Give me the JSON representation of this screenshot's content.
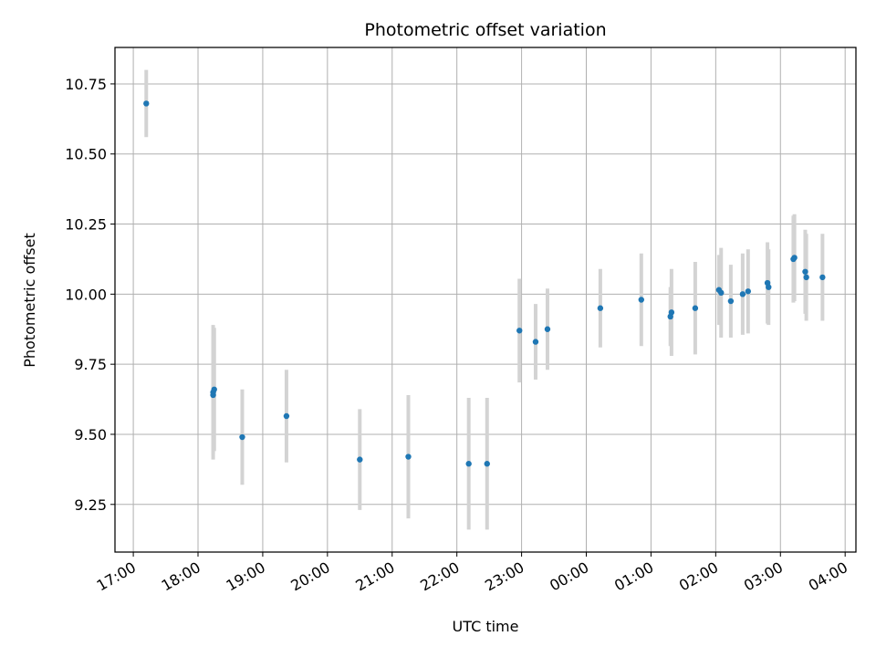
{
  "chart_data": {
    "type": "scatter",
    "title": "Photometric offset variation",
    "xlabel": "UTC time",
    "ylabel": "Photometric offset",
    "x_ticks": [
      "17:00",
      "18:00",
      "19:00",
      "20:00",
      "21:00",
      "22:00",
      "23:00",
      "00:00",
      "01:00",
      "02:00",
      "03:00",
      "04:00"
    ],
    "y_ticks": [
      "9.25",
      "9.50",
      "9.75",
      "10.00",
      "10.25",
      "10.50",
      "10.75"
    ],
    "xlim": [
      "16:43",
      "04:10"
    ],
    "ylim": [
      9.08,
      10.88
    ],
    "grid": true,
    "colors": {
      "point": "#1f77b4",
      "errorbar": "#d3d3d3",
      "grid": "#b0b0b0"
    },
    "points": [
      {
        "x": "17:12",
        "y": 10.68,
        "err": 0.12
      },
      {
        "x": "18:14",
        "y": 9.65,
        "err": 0.24
      },
      {
        "x": "18:14",
        "y": 9.64,
        "err": 0.21
      },
      {
        "x": "18:15",
        "y": 9.66,
        "err": 0.22
      },
      {
        "x": "18:41",
        "y": 9.49,
        "err": 0.17
      },
      {
        "x": "19:22",
        "y": 9.565,
        "err": 0.165
      },
      {
        "x": "20:30",
        "y": 9.41,
        "err": 0.18
      },
      {
        "x": "21:15",
        "y": 9.42,
        "err": 0.22
      },
      {
        "x": "22:11",
        "y": 9.395,
        "err": 0.235
      },
      {
        "x": "22:28",
        "y": 9.395,
        "err": 0.235
      },
      {
        "x": "22:58",
        "y": 9.87,
        "err": 0.185
      },
      {
        "x": "23:13",
        "y": 9.83,
        "err": 0.135
      },
      {
        "x": "23:24",
        "y": 9.875,
        "err": 0.145
      },
      {
        "x": "00:13",
        "y": 9.95,
        "err": 0.14
      },
      {
        "x": "00:51",
        "y": 9.98,
        "err": 0.165
      },
      {
        "x": "01:18",
        "y": 9.92,
        "err": 0.105
      },
      {
        "x": "01:19",
        "y": 9.935,
        "err": 0.155
      },
      {
        "x": "01:41",
        "y": 9.95,
        "err": 0.165
      },
      {
        "x": "02:03",
        "y": 10.015,
        "err": 0.125
      },
      {
        "x": "02:05",
        "y": 10.005,
        "err": 0.16
      },
      {
        "x": "02:14",
        "y": 9.975,
        "err": 0.13
      },
      {
        "x": "02:25",
        "y": 10.0,
        "err": 0.145
      },
      {
        "x": "02:30",
        "y": 10.01,
        "err": 0.15
      },
      {
        "x": "02:48",
        "y": 10.04,
        "err": 0.145
      },
      {
        "x": "02:49",
        "y": 10.025,
        "err": 0.135
      },
      {
        "x": "03:12",
        "y": 10.125,
        "err": 0.155
      },
      {
        "x": "03:13",
        "y": 10.13,
        "err": 0.155
      },
      {
        "x": "03:23",
        "y": 10.08,
        "err": 0.15
      },
      {
        "x": "03:24",
        "y": 10.06,
        "err": 0.155
      },
      {
        "x": "03:39",
        "y": 10.06,
        "err": 0.155
      }
    ]
  }
}
